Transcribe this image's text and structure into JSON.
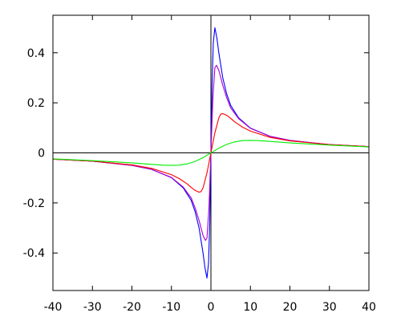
{
  "chart_data": {
    "type": "line",
    "title": "",
    "xlabel": "",
    "ylabel": "",
    "xlim": [
      -40,
      40
    ],
    "ylim": [
      -0.55,
      0.55
    ],
    "grid": false,
    "legend": "none",
    "xticks": [
      -40,
      -30,
      -20,
      -10,
      0,
      10,
      20,
      30,
      40
    ],
    "xtick_labels": [
      "-40",
      "-30",
      "-20",
      "-10",
      "0",
      "10",
      "20",
      "30",
      "40"
    ],
    "yticks": [
      -0.4,
      -0.2,
      0,
      0.2,
      0.4
    ],
    "ytick_labels": [
      "-0.4",
      "-0.2",
      "0",
      "0.2",
      "0.4"
    ],
    "series": [
      {
        "color": "#0000ff",
        "x": [
          -40,
          -30,
          -20,
          -15,
          -10,
          -7,
          -5,
          -4,
          -3,
          -2,
          -1.5,
          -1,
          -0.6,
          -0.3,
          0,
          0.3,
          0.6,
          1,
          1.5,
          2,
          3,
          4,
          5,
          7,
          10,
          15,
          20,
          30,
          40
        ],
        "y": [
          -0.025,
          -0.033,
          -0.05,
          -0.066,
          -0.099,
          -0.14,
          -0.19,
          -0.235,
          -0.3,
          -0.4,
          -0.46,
          -0.5,
          -0.44,
          -0.28,
          0,
          0.28,
          0.44,
          0.5,
          0.46,
          0.4,
          0.3,
          0.235,
          0.19,
          0.14,
          0.099,
          0.066,
          0.05,
          0.033,
          0.025
        ]
      },
      {
        "color": "#aa00cc",
        "x": [
          -40,
          -30,
          -20,
          -15,
          -10,
          -7,
          -5,
          -4,
          -3,
          -2,
          -1.4,
          -1,
          -0.5,
          0,
          0.5,
          1,
          1.4,
          2,
          3,
          4,
          5,
          7,
          10,
          15,
          20,
          30,
          40
        ],
        "y": [
          -0.025,
          -0.033,
          -0.05,
          -0.066,
          -0.098,
          -0.137,
          -0.18,
          -0.22,
          -0.27,
          -0.33,
          -0.35,
          -0.34,
          -0.22,
          0,
          0.22,
          0.34,
          0.35,
          0.33,
          0.27,
          0.22,
          0.18,
          0.137,
          0.098,
          0.066,
          0.05,
          0.033,
          0.025
        ]
      },
      {
        "color": "#ff0000",
        "x": [
          -40,
          -30,
          -20,
          -15,
          -10,
          -8,
          -6,
          -5,
          -4,
          -3,
          -2.5,
          -2,
          -1,
          0,
          1,
          2,
          2.5,
          3,
          4,
          5,
          6,
          8,
          10,
          15,
          20,
          30,
          40
        ],
        "y": [
          -0.025,
          -0.033,
          -0.048,
          -0.062,
          -0.087,
          -0.103,
          -0.124,
          -0.138,
          -0.15,
          -0.157,
          -0.155,
          -0.14,
          -0.08,
          0,
          0.08,
          0.14,
          0.155,
          0.157,
          0.15,
          0.138,
          0.124,
          0.103,
          0.087,
          0.062,
          0.048,
          0.033,
          0.025
        ]
      },
      {
        "color": "#00ee00",
        "x": [
          -40,
          -30,
          -20,
          -15,
          -12,
          -10,
          -8,
          -6,
          -4,
          -2,
          0,
          2,
          4,
          6,
          8,
          10,
          12,
          15,
          20,
          30,
          40
        ],
        "y": [
          -0.024,
          -0.031,
          -0.04,
          -0.046,
          -0.049,
          -0.05,
          -0.049,
          -0.044,
          -0.034,
          -0.019,
          0,
          0.019,
          0.034,
          0.044,
          0.049,
          0.05,
          0.049,
          0.046,
          0.04,
          0.031,
          0.024
        ]
      }
    ]
  }
}
